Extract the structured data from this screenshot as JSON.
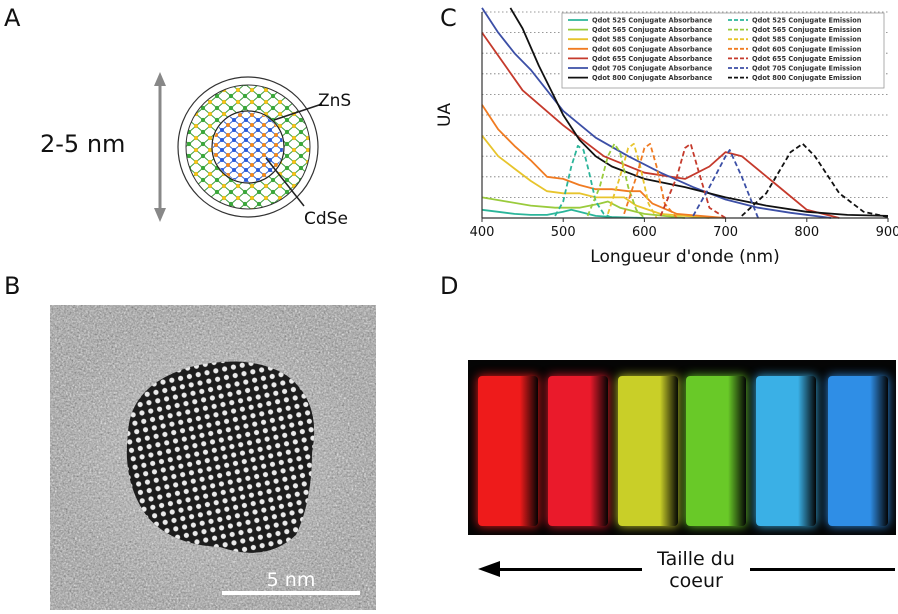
{
  "panels": {
    "a": "A",
    "b": "B",
    "c": "C",
    "d": "D"
  },
  "panel_a": {
    "size_label": "2-5 nm",
    "shell_label": "ZnS",
    "core_label": "CdSe"
  },
  "panel_b": {
    "scale_label": "5 nm"
  },
  "panel_d": {
    "caption_line1": "Taille du",
    "caption_line2": "coeur"
  },
  "vial_colors": [
    "#ee1b1b",
    "#ea1a2b",
    "#c9cf28",
    "#69c928",
    "#3ab0e6",
    "#2f8ee6"
  ],
  "chart_data": {
    "type": "line",
    "title": "",
    "xlabel": "Longueur d'onde (nm)",
    "ylabel": "UA",
    "xlim": [
      400,
      900
    ],
    "ylim": [
      0,
      1
    ],
    "xticks": [
      400,
      500,
      600,
      700,
      800,
      900
    ],
    "xtick_labels": [
      "400",
      "500",
      "600",
      "700",
      "800",
      "900"
    ],
    "grid": "horizontal dotted",
    "legend_position": "top-right",
    "series": [
      {
        "name": "Qdot 525 Conjugate Absorbance",
        "style": "solid",
        "color": "#2bb59a",
        "x": [
          400,
          420,
          440,
          460,
          480,
          500,
          510,
          520,
          540,
          560,
          600
        ],
        "y": [
          0.04,
          0.03,
          0.02,
          0.015,
          0.015,
          0.03,
          0.04,
          0.03,
          0.01,
          0.005,
          0
        ]
      },
      {
        "name": "Qdot 565 Conjugate Absorbance",
        "style": "solid",
        "color": "#9acb3c",
        "x": [
          400,
          430,
          460,
          490,
          520,
          545,
          555,
          570,
          600,
          650
        ],
        "y": [
          0.1,
          0.08,
          0.06,
          0.05,
          0.05,
          0.07,
          0.08,
          0.05,
          0.02,
          0
        ]
      },
      {
        "name": "Qdot 585 Conjugate Absorbance",
        "style": "solid",
        "color": "#e7c42c",
        "x": [
          400,
          420,
          440,
          460,
          480,
          500,
          520,
          540,
          560,
          575,
          590,
          620,
          680
        ],
        "y": [
          0.4,
          0.3,
          0.24,
          0.18,
          0.13,
          0.12,
          0.12,
          0.1,
          0.1,
          0.1,
          0.06,
          0.02,
          0
        ]
      },
      {
        "name": "Qdot 605 Conjugate Absorbance",
        "style": "solid",
        "color": "#f07b22",
        "x": [
          400,
          420,
          440,
          460,
          480,
          500,
          520,
          540,
          560,
          580,
          595,
          610,
          640,
          700
        ],
        "y": [
          0.55,
          0.43,
          0.35,
          0.28,
          0.2,
          0.19,
          0.16,
          0.14,
          0.14,
          0.13,
          0.13,
          0.07,
          0.02,
          0
        ]
      },
      {
        "name": "Qdot 655 Conjugate Absorbance",
        "style": "solid",
        "color": "#c53a2c",
        "x": [
          400,
          450,
          500,
          550,
          600,
          650,
          680,
          700,
          720,
          760,
          800,
          840
        ],
        "y": [
          0.9,
          0.62,
          0.45,
          0.3,
          0.22,
          0.19,
          0.25,
          0.32,
          0.3,
          0.17,
          0.04,
          0
        ]
      },
      {
        "name": "Qdot 705 Conjugate Absorbance",
        "style": "solid",
        "color": "#3c4fa6",
        "x": [
          400,
          420,
          440,
          460,
          480,
          500,
          540,
          580,
          620,
          660,
          700,
          740,
          780,
          830
        ],
        "y": [
          1.02,
          0.9,
          0.8,
          0.72,
          0.62,
          0.52,
          0.39,
          0.3,
          0.22,
          0.15,
          0.09,
          0.05,
          0.025,
          0
        ]
      },
      {
        "name": "Qdot 800 Conjugate Absorbance",
        "style": "solid",
        "color": "#111111",
        "x": [
          435,
          450,
          470,
          490,
          500,
          520,
          540,
          560,
          600,
          650,
          700,
          750,
          800,
          850,
          900
        ],
        "y": [
          1.02,
          0.92,
          0.74,
          0.58,
          0.5,
          0.38,
          0.3,
          0.25,
          0.19,
          0.15,
          0.1,
          0.06,
          0.03,
          0.015,
          0.01
        ]
      },
      {
        "name": "Qdot 525 Conjugate Emission",
        "style": "dashed",
        "color": "#2bb59a",
        "x": [
          490,
          500,
          510,
          518,
          525,
          532,
          540,
          550,
          560
        ],
        "y": [
          0.01,
          0.08,
          0.25,
          0.35,
          0.33,
          0.22,
          0.08,
          0.02,
          0
        ]
      },
      {
        "name": "Qdot 565 Conjugate Emission",
        "style": "dashed",
        "color": "#9acb3c",
        "x": [
          530,
          545,
          555,
          563,
          570,
          580,
          590,
          600
        ],
        "y": [
          0.01,
          0.15,
          0.3,
          0.36,
          0.32,
          0.15,
          0.04,
          0
        ]
      },
      {
        "name": "Qdot 585 Conjugate Emission",
        "style": "dashed",
        "color": "#e7c42c",
        "x": [
          555,
          570,
          580,
          587,
          595,
          605,
          615
        ],
        "y": [
          0.02,
          0.2,
          0.34,
          0.36,
          0.25,
          0.07,
          0
        ]
      },
      {
        "name": "Qdot 605 Conjugate Emission",
        "style": "dashed",
        "color": "#f07b22",
        "x": [
          575,
          590,
          600,
          607,
          615,
          625,
          640
        ],
        "y": [
          0.02,
          0.2,
          0.34,
          0.36,
          0.25,
          0.07,
          0
        ]
      },
      {
        "name": "Qdot 655 Conjugate Emission",
        "style": "dashed",
        "color": "#c53a2c",
        "x": [
          620,
          640,
          650,
          657,
          665,
          680,
          700
        ],
        "y": [
          0.01,
          0.2,
          0.34,
          0.36,
          0.25,
          0.05,
          0
        ]
      },
      {
        "name": "Qdot 705 Conjugate Emission",
        "style": "dashed",
        "color": "#3c4fa6",
        "x": [
          660,
          680,
          700,
          705,
          720,
          740
        ],
        "y": [
          0.01,
          0.15,
          0.3,
          0.33,
          0.2,
          0
        ]
      },
      {
        "name": "Qdot 800 Conjugate Emission",
        "style": "dashed",
        "color": "#111111",
        "x": [
          720,
          750,
          780,
          795,
          810,
          840,
          870,
          900
        ],
        "y": [
          0.01,
          0.12,
          0.32,
          0.36,
          0.3,
          0.12,
          0.03,
          0.005
        ]
      }
    ]
  }
}
